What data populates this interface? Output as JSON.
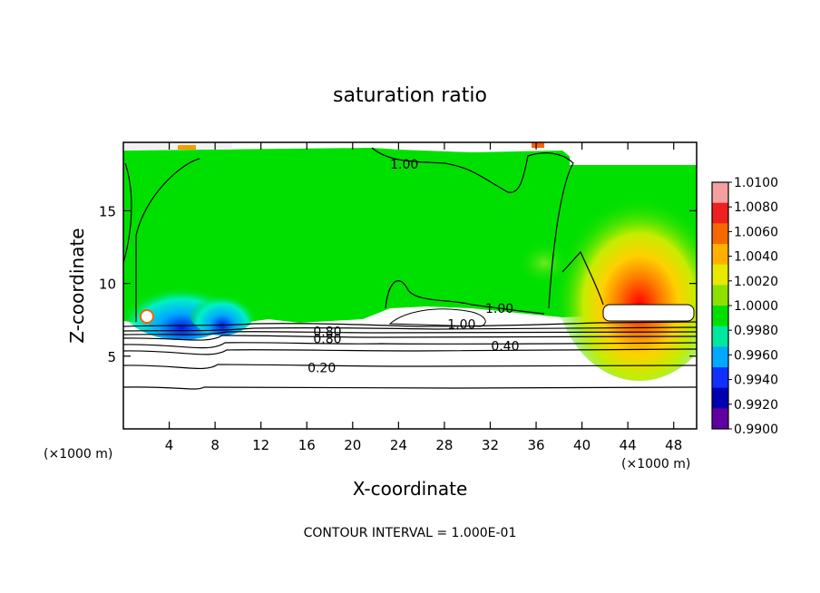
{
  "chart_data": {
    "type": "heatmap",
    "title": "saturation ratio",
    "xlabel": "X-coordinate",
    "ylabel": "Z-coordinate",
    "x_unit": "(×1000 m)",
    "y_unit": "(×1000 m)",
    "footer": "CONTOUR INTERVAL = 1.000E-01",
    "xlim": [
      0,
      50
    ],
    "ylim": [
      0,
      19.7
    ],
    "x_ticks": [
      4,
      8,
      12,
      16,
      20,
      24,
      28,
      32,
      36,
      40,
      44,
      48
    ],
    "y_ticks": [
      5,
      10,
      15
    ],
    "colorbar": {
      "ticks": [
        "1.0100",
        "1.0080",
        "1.0060",
        "1.0040",
        "1.0020",
        "1.0000",
        "0.9980",
        "0.9960",
        "0.9940",
        "0.9920",
        "0.9900"
      ],
      "colors": [
        "#f4a0a0",
        "#ee2020",
        "#f56a00",
        "#ffb000",
        "#e8e800",
        "#8ee000",
        "#00e000",
        "#00e8a0",
        "#00aaff",
        "#1030ff",
        "#0000b0",
        "#6000a0"
      ]
    },
    "contour_labels": [
      {
        "text": "1.00",
        "x": 24.5,
        "y": 18.2
      },
      {
        "text": "1.00",
        "x": 32.8,
        "y": 8.3
      },
      {
        "text": "1.00",
        "x": 29.5,
        "y": 7.2
      },
      {
        "text": "0.80",
        "x": 17.8,
        "y": 6.7
      },
      {
        "text": "0.80",
        "x": 17.8,
        "y": 6.2
      },
      {
        "text": "0.40",
        "x": 33.3,
        "y": 5.7
      },
      {
        "text": "0.20",
        "x": 17.3,
        "y": 4.2
      }
    ],
    "contour_levels": [
      0.1,
      0.2,
      0.3,
      0.4,
      0.5,
      0.6,
      0.7,
      0.8,
      0.9,
      1.0
    ]
  }
}
